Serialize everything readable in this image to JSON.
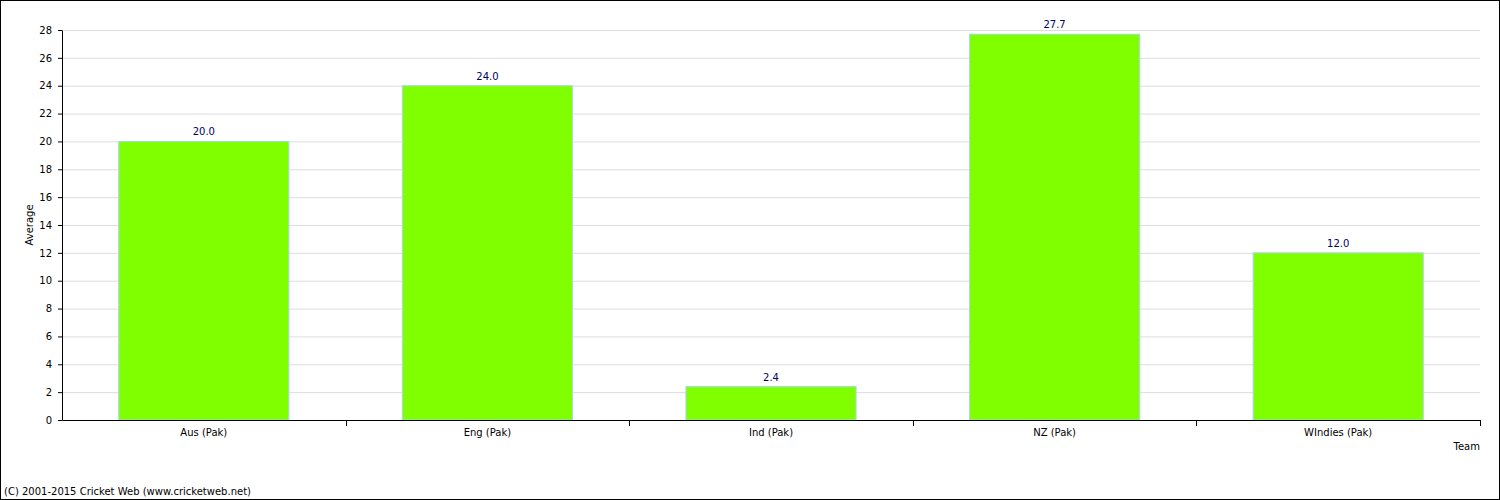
{
  "chart_data": {
    "type": "bar",
    "categories": [
      "Aus (Pak)",
      "Eng (Pak)",
      "Ind (Pak)",
      "NZ (Pak)",
      "WIndies (Pak)"
    ],
    "values": [
      20.0,
      24.0,
      2.4,
      27.7,
      12.0
    ],
    "value_labels": [
      "20.0",
      "24.0",
      "2.4",
      "27.7",
      "12.0"
    ],
    "color": "#80ff00",
    "xlabel": "Team",
    "ylabel": "Average",
    "ylim": [
      0,
      28
    ],
    "yticks": [
      0,
      2,
      4,
      6,
      8,
      10,
      12,
      14,
      16,
      18,
      20,
      22,
      24,
      26,
      28
    ],
    "grid": true,
    "data_labels": true,
    "annotations": [
      "(C) 2001-2015 Cricket Web (www.cricketweb.net)"
    ]
  }
}
